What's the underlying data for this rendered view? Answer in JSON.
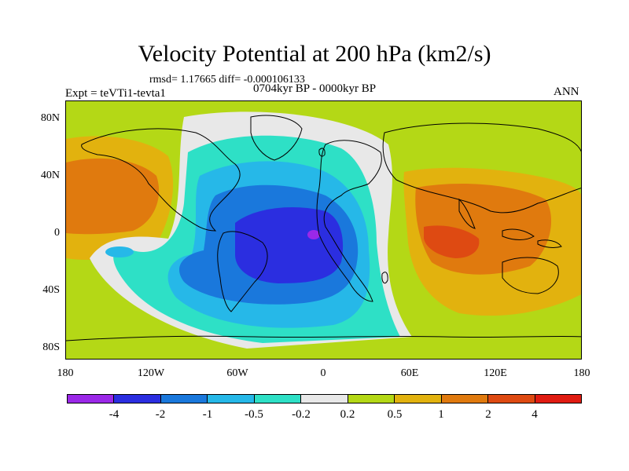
{
  "title": "Velocity Potential at 200 hPa (km2/s)",
  "stats": "rmsd= 1.17665 diff= -0.000106133",
  "period": "0704kyr BP - 0000kyr BP",
  "expt": "Expt = teVTi1-tevta1",
  "season": "ANN",
  "lat_labels": [
    "80N",
    "40N",
    "0",
    "40S",
    "80S"
  ],
  "lon_labels": [
    "180",
    "120W",
    "60W",
    "0",
    "60E",
    "120E",
    "180"
  ],
  "colorbar": {
    "colors": [
      "#9b28e8",
      "#2b2ee0",
      "#1a78dc",
      "#26b8e8",
      "#2ee0c6",
      "#e8e8e8",
      "#b4d816",
      "#e2b20e",
      "#e07a0e",
      "#de4a12",
      "#e01c12"
    ],
    "labels": [
      "-4",
      "-2",
      "-1",
      "-0.5",
      "-0.2",
      "0.2",
      "0.5",
      "1",
      "2",
      "4"
    ]
  }
}
